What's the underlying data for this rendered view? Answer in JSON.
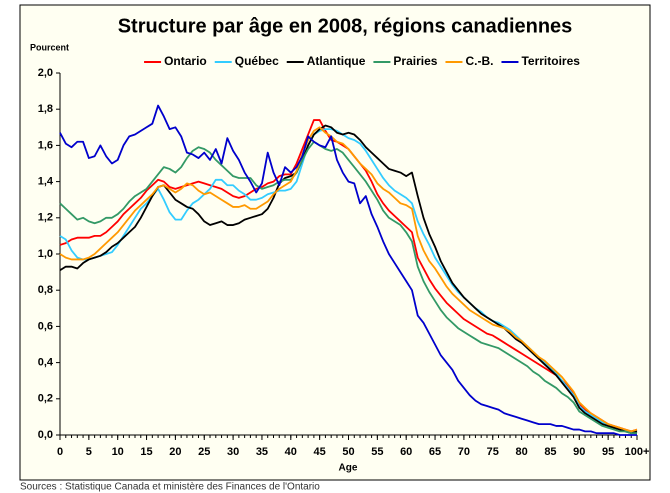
{
  "chart_data": {
    "type": "line",
    "title": "Structure par âge en 2008, régions canadiennes",
    "y_label": "Pourcent",
    "x_label": "Age",
    "source": "Sources : Statistique Canada et ministère des Finances de l'Ontario",
    "x": [
      0,
      1,
      2,
      3,
      4,
      5,
      6,
      7,
      8,
      9,
      10,
      11,
      12,
      13,
      14,
      15,
      16,
      17,
      18,
      19,
      20,
      21,
      22,
      23,
      24,
      25,
      26,
      27,
      28,
      29,
      30,
      31,
      32,
      33,
      34,
      35,
      36,
      37,
      38,
      39,
      40,
      41,
      42,
      43,
      44,
      45,
      46,
      47,
      48,
      49,
      50,
      51,
      52,
      53,
      54,
      55,
      56,
      57,
      58,
      59,
      60,
      61,
      62,
      63,
      64,
      65,
      66,
      67,
      68,
      69,
      70,
      71,
      72,
      73,
      74,
      75,
      76,
      77,
      78,
      79,
      80,
      81,
      82,
      83,
      84,
      85,
      86,
      87,
      88,
      89,
      90,
      91,
      92,
      93,
      94,
      95,
      96,
      97,
      98,
      99,
      100
    ],
    "xlim": [
      0,
      100
    ],
    "xticks": [
      0,
      5,
      10,
      15,
      20,
      25,
      30,
      35,
      40,
      45,
      50,
      55,
      60,
      65,
      70,
      75,
      80,
      85,
      90,
      95,
      {
        "value": 100,
        "label": "100+"
      }
    ],
    "ylim": [
      0,
      2
    ],
    "yticks": [
      {
        "value": 0,
        "label": "0,0"
      },
      {
        "value": 0.2,
        "label": "0,2"
      },
      {
        "value": 0.4,
        "label": "0,4"
      },
      {
        "value": 0.6,
        "label": "0,6"
      },
      {
        "value": 0.8,
        "label": "0,8"
      },
      {
        "value": 1,
        "label": "1,0"
      },
      {
        "value": 1.2,
        "label": "1,2"
      },
      {
        "value": 1.4,
        "label": "1,4"
      },
      {
        "value": 1.6,
        "label": "1,6"
      },
      {
        "value": 1.8,
        "label": "1,8"
      },
      {
        "value": 2,
        "label": "2,0"
      }
    ],
    "legend": "top",
    "series": [
      {
        "name": "Ontario",
        "color": "#ff0000",
        "values": [
          1.05,
          1.06,
          1.08,
          1.09,
          1.09,
          1.09,
          1.1,
          1.1,
          1.12,
          1.15,
          1.18,
          1.22,
          1.25,
          1.28,
          1.31,
          1.35,
          1.38,
          1.41,
          1.4,
          1.37,
          1.36,
          1.37,
          1.38,
          1.39,
          1.4,
          1.39,
          1.38,
          1.37,
          1.36,
          1.34,
          1.32,
          1.31,
          1.32,
          1.34,
          1.36,
          1.37,
          1.39,
          1.4,
          1.43,
          1.44,
          1.44,
          1.5,
          1.58,
          1.66,
          1.74,
          1.74,
          1.68,
          1.63,
          1.62,
          1.6,
          1.58,
          1.54,
          1.5,
          1.46,
          1.4,
          1.33,
          1.28,
          1.24,
          1.21,
          1.18,
          1.15,
          1.12,
          0.98,
          0.92,
          0.86,
          0.81,
          0.77,
          0.73,
          0.7,
          0.67,
          0.64,
          0.62,
          0.6,
          0.58,
          0.56,
          0.55,
          0.53,
          0.51,
          0.49,
          0.47,
          0.45,
          0.43,
          0.41,
          0.39,
          0.37,
          0.35,
          0.33,
          0.3,
          0.27,
          0.23,
          0.17,
          0.14,
          0.12,
          0.1,
          0.08,
          0.06,
          0.05,
          0.04,
          0.03,
          0.02,
          0.03
        ]
      },
      {
        "name": "Québec",
        "color": "#33ccff",
        "values": [
          1.1,
          1.08,
          1.02,
          0.98,
          0.97,
          0.97,
          0.98,
          0.99,
          1.0,
          1.01,
          1.05,
          1.1,
          1.15,
          1.2,
          1.25,
          1.28,
          1.32,
          1.36,
          1.3,
          1.23,
          1.19,
          1.19,
          1.24,
          1.28,
          1.3,
          1.33,
          1.36,
          1.41,
          1.41,
          1.38,
          1.38,
          1.35,
          1.33,
          1.3,
          1.3,
          1.31,
          1.33,
          1.34,
          1.35,
          1.35,
          1.36,
          1.4,
          1.5,
          1.6,
          1.66,
          1.68,
          1.69,
          1.69,
          1.68,
          1.66,
          1.64,
          1.63,
          1.61,
          1.57,
          1.52,
          1.47,
          1.42,
          1.38,
          1.35,
          1.33,
          1.31,
          1.28,
          1.18,
          1.11,
          1.05,
          0.98,
          0.93,
          0.88,
          0.83,
          0.79,
          0.76,
          0.73,
          0.7,
          0.68,
          0.65,
          0.63,
          0.62,
          0.6,
          0.58,
          0.55,
          0.52,
          0.49,
          0.46,
          0.43,
          0.4,
          0.37,
          0.34,
          0.3,
          0.26,
          0.22,
          0.16,
          0.13,
          0.11,
          0.09,
          0.07,
          0.05,
          0.04,
          0.03,
          0.02,
          0.01,
          0.02
        ]
      },
      {
        "name": "Atlantique",
        "color": "#000000",
        "values": [
          0.91,
          0.93,
          0.93,
          0.92,
          0.95,
          0.97,
          0.98,
          0.99,
          1.01,
          1.04,
          1.06,
          1.09,
          1.12,
          1.15,
          1.2,
          1.26,
          1.32,
          1.37,
          1.38,
          1.34,
          1.3,
          1.28,
          1.26,
          1.25,
          1.22,
          1.18,
          1.16,
          1.17,
          1.18,
          1.16,
          1.16,
          1.17,
          1.19,
          1.2,
          1.21,
          1.22,
          1.25,
          1.31,
          1.39,
          1.42,
          1.43,
          1.45,
          1.52,
          1.6,
          1.66,
          1.69,
          1.71,
          1.7,
          1.67,
          1.66,
          1.67,
          1.66,
          1.63,
          1.59,
          1.56,
          1.53,
          1.5,
          1.47,
          1.46,
          1.45,
          1.43,
          1.45,
          1.32,
          1.2,
          1.11,
          1.04,
          0.96,
          0.9,
          0.84,
          0.8,
          0.76,
          0.73,
          0.7,
          0.67,
          0.65,
          0.63,
          0.61,
          0.59,
          0.56,
          0.53,
          0.51,
          0.48,
          0.45,
          0.42,
          0.39,
          0.36,
          0.33,
          0.29,
          0.25,
          0.21,
          0.15,
          0.12,
          0.1,
          0.08,
          0.06,
          0.05,
          0.04,
          0.03,
          0.02,
          0.01,
          0.02
        ]
      },
      {
        "name": "Prairies",
        "color": "#339966",
        "values": [
          1.28,
          1.25,
          1.22,
          1.19,
          1.2,
          1.18,
          1.17,
          1.18,
          1.2,
          1.2,
          1.22,
          1.25,
          1.29,
          1.32,
          1.34,
          1.36,
          1.4,
          1.44,
          1.48,
          1.47,
          1.45,
          1.48,
          1.53,
          1.57,
          1.59,
          1.58,
          1.56,
          1.52,
          1.49,
          1.46,
          1.43,
          1.42,
          1.42,
          1.42,
          1.38,
          1.36,
          1.37,
          1.38,
          1.4,
          1.41,
          1.41,
          1.45,
          1.52,
          1.58,
          1.62,
          1.6,
          1.58,
          1.57,
          1.58,
          1.56,
          1.52,
          1.48,
          1.44,
          1.4,
          1.35,
          1.3,
          1.24,
          1.2,
          1.18,
          1.16,
          1.12,
          1.07,
          0.93,
          0.85,
          0.79,
          0.74,
          0.69,
          0.65,
          0.62,
          0.59,
          0.57,
          0.55,
          0.53,
          0.51,
          0.5,
          0.49,
          0.48,
          0.46,
          0.44,
          0.42,
          0.4,
          0.38,
          0.35,
          0.33,
          0.3,
          0.28,
          0.26,
          0.23,
          0.21,
          0.18,
          0.13,
          0.11,
          0.09,
          0.07,
          0.05,
          0.04,
          0.03,
          0.02,
          0.02,
          0.01,
          0.01
        ]
      },
      {
        "name": "C.-B.",
        "color": "#ff9900",
        "values": [
          1.0,
          0.98,
          0.97,
          0.97,
          0.97,
          0.98,
          1.0,
          1.03,
          1.06,
          1.09,
          1.12,
          1.16,
          1.2,
          1.24,
          1.27,
          1.3,
          1.33,
          1.37,
          1.38,
          1.36,
          1.34,
          1.36,
          1.39,
          1.38,
          1.35,
          1.33,
          1.34,
          1.32,
          1.3,
          1.28,
          1.26,
          1.26,
          1.27,
          1.25,
          1.25,
          1.27,
          1.29,
          1.33,
          1.36,
          1.38,
          1.4,
          1.46,
          1.55,
          1.63,
          1.68,
          1.7,
          1.67,
          1.65,
          1.62,
          1.61,
          1.58,
          1.54,
          1.5,
          1.47,
          1.44,
          1.39,
          1.36,
          1.34,
          1.31,
          1.28,
          1.27,
          1.25,
          1.1,
          1.02,
          0.96,
          0.92,
          0.87,
          0.82,
          0.78,
          0.75,
          0.72,
          0.69,
          0.67,
          0.65,
          0.63,
          0.61,
          0.6,
          0.59,
          0.57,
          0.54,
          0.52,
          0.49,
          0.46,
          0.43,
          0.41,
          0.38,
          0.35,
          0.32,
          0.28,
          0.24,
          0.18,
          0.15,
          0.12,
          0.1,
          0.08,
          0.06,
          0.05,
          0.04,
          0.03,
          0.02,
          0.03
        ]
      },
      {
        "name": "Territoires",
        "color": "#0000cc",
        "values": [
          1.67,
          1.61,
          1.59,
          1.62,
          1.62,
          1.53,
          1.54,
          1.6,
          1.54,
          1.5,
          1.52,
          1.6,
          1.65,
          1.66,
          1.68,
          1.7,
          1.72,
          1.82,
          1.76,
          1.69,
          1.7,
          1.65,
          1.56,
          1.55,
          1.53,
          1.56,
          1.52,
          1.58,
          1.5,
          1.64,
          1.57,
          1.52,
          1.45,
          1.4,
          1.34,
          1.39,
          1.56,
          1.45,
          1.38,
          1.48,
          1.45,
          1.48,
          1.54,
          1.65,
          1.62,
          1.6,
          1.59,
          1.65,
          1.52,
          1.45,
          1.4,
          1.39,
          1.28,
          1.32,
          1.22,
          1.15,
          1.07,
          1.0,
          0.95,
          0.9,
          0.85,
          0.8,
          0.66,
          0.62,
          0.56,
          0.5,
          0.44,
          0.4,
          0.36,
          0.3,
          0.26,
          0.22,
          0.19,
          0.17,
          0.16,
          0.15,
          0.14,
          0.12,
          0.11,
          0.1,
          0.09,
          0.08,
          0.07,
          0.06,
          0.06,
          0.06,
          0.05,
          0.05,
          0.04,
          0.03,
          0.03,
          0.02,
          0.02,
          0.01,
          0.01,
          0.01,
          0.01,
          0,
          0,
          0,
          0
        ]
      }
    ]
  }
}
